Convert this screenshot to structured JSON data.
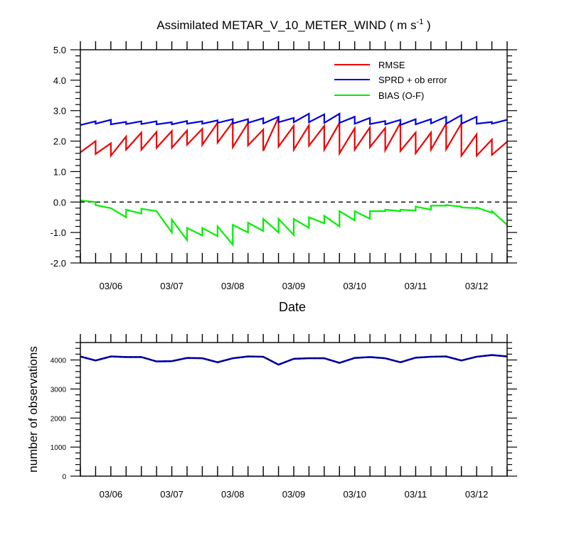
{
  "title_main": "Assimilated METAR_V_10_METER_WIND ( m s",
  "title_sup": "-1",
  "title_close": " )",
  "chart_data": [
    {
      "type": "line",
      "title": "Assimilated METAR_V_10_METER_WIND ( m s-1 )",
      "xlabel": "Date",
      "ylabel": "",
      "ylim": [
        -2.0,
        5.0
      ],
      "yticks": [
        "5.0",
        "4.0",
        "3.0",
        "2.0",
        "1.0",
        "0.0",
        "-1.0",
        "-2.0"
      ],
      "xticks": [
        "03/06",
        "03/07",
        "03/08",
        "03/09",
        "03/10",
        "03/11",
        "03/12"
      ],
      "xlim_days": [
        5.5,
        12.5
      ],
      "zero_line": "dashed",
      "legend_position": "top-right",
      "series": [
        {
          "name": "RMSE",
          "color": "#ee0000",
          "segments": [
            [
              [
                5.5,
                1.63
              ],
              [
                5.75,
                2.0
              ]
            ],
            [
              [
                5.75,
                1.58
              ],
              [
                6.0,
                1.93
              ]
            ],
            [
              [
                6.0,
                1.52
              ],
              [
                6.25,
                2.15
              ]
            ],
            [
              [
                6.25,
                1.72
              ],
              [
                6.5,
                2.28
              ]
            ],
            [
              [
                6.5,
                1.72
              ],
              [
                6.75,
                2.3
              ]
            ],
            [
              [
                6.75,
                1.78
              ],
              [
                7.0,
                2.33
              ]
            ],
            [
              [
                7.0,
                1.78
              ],
              [
                7.25,
                2.35
              ]
            ],
            [
              [
                7.25,
                1.88
              ],
              [
                7.5,
                2.4
              ]
            ],
            [
              [
                7.5,
                1.88
              ],
              [
                7.75,
                2.6
              ]
            ],
            [
              [
                7.75,
                1.95
              ],
              [
                8.0,
                2.63
              ]
            ],
            [
              [
                8.0,
                1.8
              ],
              [
                8.25,
                2.6
              ]
            ],
            [
              [
                8.25,
                1.86
              ],
              [
                8.5,
                2.38
              ]
            ],
            [
              [
                8.5,
                1.68
              ],
              [
                8.75,
                2.78
              ]
            ],
            [
              [
                8.75,
                1.82
              ],
              [
                9.0,
                2.5
              ]
            ],
            [
              [
                9.0,
                1.72
              ],
              [
                9.25,
                2.52
              ]
            ],
            [
              [
                9.25,
                1.85
              ],
              [
                9.5,
                2.5
              ]
            ],
            [
              [
                9.5,
                1.72
              ],
              [
                9.75,
                2.6
              ]
            ],
            [
              [
                9.75,
                1.6
              ],
              [
                10.0,
                2.42
              ]
            ],
            [
              [
                10.0,
                1.72
              ],
              [
                10.25,
                2.45
              ]
            ],
            [
              [
                10.25,
                1.8
              ],
              [
                10.5,
                2.43
              ]
            ],
            [
              [
                10.5,
                1.7
              ],
              [
                10.75,
                2.6
              ]
            ],
            [
              [
                10.75,
                1.68
              ],
              [
                11.0,
                2.28
              ]
            ],
            [
              [
                11.0,
                1.6
              ],
              [
                11.25,
                2.28
              ]
            ],
            [
              [
                11.25,
                1.72
              ],
              [
                11.5,
                2.58
              ]
            ],
            [
              [
                11.5,
                1.73
              ],
              [
                11.75,
                2.58
              ]
            ],
            [
              [
                11.75,
                1.52
              ],
              [
                12.0,
                2.22
              ]
            ],
            [
              [
                12.0,
                1.52
              ],
              [
                12.25,
                2.05
              ]
            ],
            [
              [
                12.25,
                1.55
              ],
              [
                12.5,
                1.98
              ]
            ]
          ]
        },
        {
          "name": "SPRD + ob error",
          "color": "#0000dd",
          "segments": [
            [
              [
                5.5,
                2.53
              ],
              [
                5.75,
                2.65
              ]
            ],
            [
              [
                5.75,
                2.57
              ],
              [
                6.0,
                2.7
              ]
            ],
            [
              [
                6.0,
                2.55
              ],
              [
                6.25,
                2.63
              ]
            ],
            [
              [
                6.25,
                2.56
              ],
              [
                6.5,
                2.65
              ]
            ],
            [
              [
                6.5,
                2.56
              ],
              [
                6.75,
                2.65
              ]
            ],
            [
              [
                6.75,
                2.55
              ],
              [
                7.0,
                2.62
              ]
            ],
            [
              [
                7.0,
                2.55
              ],
              [
                7.25,
                2.66
              ]
            ],
            [
              [
                7.25,
                2.57
              ],
              [
                7.5,
                2.65
              ]
            ],
            [
              [
                7.5,
                2.57
              ],
              [
                7.75,
                2.68
              ]
            ],
            [
              [
                7.75,
                2.6
              ],
              [
                8.0,
                2.72
              ]
            ],
            [
              [
                8.0,
                2.58
              ],
              [
                8.25,
                2.72
              ]
            ],
            [
              [
                8.25,
                2.6
              ],
              [
                8.5,
                2.75
              ]
            ],
            [
              [
                8.5,
                2.58
              ],
              [
                8.75,
                2.8
              ]
            ],
            [
              [
                8.75,
                2.62
              ],
              [
                9.0,
                2.76
              ]
            ],
            [
              [
                9.0,
                2.62
              ],
              [
                9.25,
                2.9
              ]
            ],
            [
              [
                9.25,
                2.62
              ],
              [
                9.5,
                2.88
              ]
            ],
            [
              [
                9.5,
                2.6
              ],
              [
                9.75,
                2.9
              ]
            ],
            [
              [
                9.75,
                2.6
              ],
              [
                10.0,
                2.8
              ]
            ],
            [
              [
                10.0,
                2.57
              ],
              [
                10.25,
                2.76
              ]
            ],
            [
              [
                10.25,
                2.56
              ],
              [
                10.5,
                2.66
              ]
            ],
            [
              [
                10.5,
                2.55
              ],
              [
                10.75,
                2.7
              ]
            ],
            [
              [
                10.75,
                2.53
              ],
              [
                11.0,
                2.72
              ]
            ],
            [
              [
                11.0,
                2.55
              ],
              [
                11.25,
                2.72
              ]
            ],
            [
              [
                11.25,
                2.58
              ],
              [
                11.5,
                2.8
              ]
            ],
            [
              [
                11.5,
                2.57
              ],
              [
                11.75,
                2.85
              ]
            ],
            [
              [
                11.75,
                2.57
              ],
              [
                12.0,
                2.8
              ]
            ],
            [
              [
                12.0,
                2.57
              ],
              [
                12.25,
                2.63
              ]
            ],
            [
              [
                12.25,
                2.57
              ],
              [
                12.5,
                2.7
              ]
            ]
          ]
        },
        {
          "name": "BIAS (O-F)",
          "color": "#00ee00",
          "segments": [
            [
              [
                5.5,
                0.05
              ],
              [
                5.75,
                0.0
              ]
            ],
            [
              [
                5.75,
                -0.1
              ],
              [
                6.0,
                -0.2
              ]
            ],
            [
              [
                6.0,
                -0.2
              ],
              [
                6.25,
                -0.5
              ]
            ],
            [
              [
                6.25,
                -0.25
              ],
              [
                6.5,
                -0.38
              ]
            ],
            [
              [
                6.5,
                -0.22
              ],
              [
                6.75,
                -0.3
              ]
            ],
            [
              [
                6.75,
                -0.3
              ],
              [
                7.0,
                -1.0
              ]
            ],
            [
              [
                7.0,
                -0.58
              ],
              [
                7.25,
                -1.25
              ]
            ],
            [
              [
                7.25,
                -0.85
              ],
              [
                7.5,
                -1.1
              ]
            ],
            [
              [
                7.5,
                -0.85
              ],
              [
                7.75,
                -1.12
              ]
            ],
            [
              [
                7.75,
                -0.8
              ],
              [
                8.0,
                -1.4
              ]
            ],
            [
              [
                8.0,
                -0.75
              ],
              [
                8.25,
                -1.0
              ]
            ],
            [
              [
                8.25,
                -0.68
              ],
              [
                8.5,
                -0.95
              ]
            ],
            [
              [
                8.5,
                -0.55
              ],
              [
                8.75,
                -1.0
              ]
            ],
            [
              [
                8.75,
                -0.55
              ],
              [
                9.0,
                -1.08
              ]
            ],
            [
              [
                9.0,
                -0.55
              ],
              [
                9.25,
                -0.85
              ]
            ],
            [
              [
                9.25,
                -0.5
              ],
              [
                9.5,
                -0.7
              ]
            ],
            [
              [
                9.5,
                -0.45
              ],
              [
                9.75,
                -0.8
              ]
            ],
            [
              [
                9.75,
                -0.3
              ],
              [
                10.0,
                -0.6
              ]
            ],
            [
              [
                10.0,
                -0.3
              ],
              [
                10.25,
                -0.55
              ]
            ],
            [
              [
                10.25,
                -0.3
              ],
              [
                10.5,
                -0.3
              ]
            ],
            [
              [
                10.5,
                -0.25
              ],
              [
                10.75,
                -0.3
              ]
            ],
            [
              [
                10.75,
                -0.25
              ],
              [
                11.0,
                -0.28
              ]
            ],
            [
              [
                11.0,
                -0.15
              ],
              [
                11.25,
                -0.25
              ]
            ],
            [
              [
                11.25,
                -0.12
              ],
              [
                11.5,
                -0.12
              ]
            ],
            [
              [
                11.5,
                -0.1
              ],
              [
                11.75,
                -0.15
              ]
            ],
            [
              [
                11.75,
                -0.18
              ],
              [
                12.0,
                -0.2
              ]
            ],
            [
              [
                12.0,
                -0.18
              ],
              [
                12.25,
                -0.35
              ]
            ],
            [
              [
                12.25,
                -0.3
              ],
              [
                12.5,
                -0.75
              ]
            ]
          ]
        }
      ]
    },
    {
      "type": "line",
      "title": "",
      "xlabel": "",
      "ylabel": "number of observations",
      "ylim": [
        0,
        4600
      ],
      "yticks": [
        "4000",
        "3000",
        "2000",
        "1000",
        "0"
      ],
      "xticks": [
        "03/06",
        "03/07",
        "03/08",
        "03/09",
        "03/10",
        "03/11",
        "03/12"
      ],
      "xlim_days": [
        5.5,
        12.5
      ],
      "series": [
        {
          "color": "#0000dd",
          "dashed_overlay_color": "#000000",
          "x": [
            5.5,
            5.75,
            6.0,
            6.25,
            6.5,
            6.75,
            7.0,
            7.25,
            7.5,
            7.75,
            8.0,
            8.25,
            8.5,
            8.75,
            9.0,
            9.25,
            9.5,
            9.75,
            10.0,
            10.25,
            10.5,
            10.75,
            11.0,
            11.25,
            11.5,
            11.75,
            12.0,
            12.25,
            12.5
          ],
          "values": [
            4120,
            3980,
            4120,
            4100,
            4100,
            3950,
            3960,
            4070,
            4060,
            3920,
            4060,
            4120,
            4110,
            3840,
            4040,
            4060,
            4060,
            3900,
            4070,
            4100,
            4060,
            3920,
            4080,
            4110,
            4120,
            3980,
            4110,
            4170,
            4120
          ]
        }
      ]
    }
  ]
}
